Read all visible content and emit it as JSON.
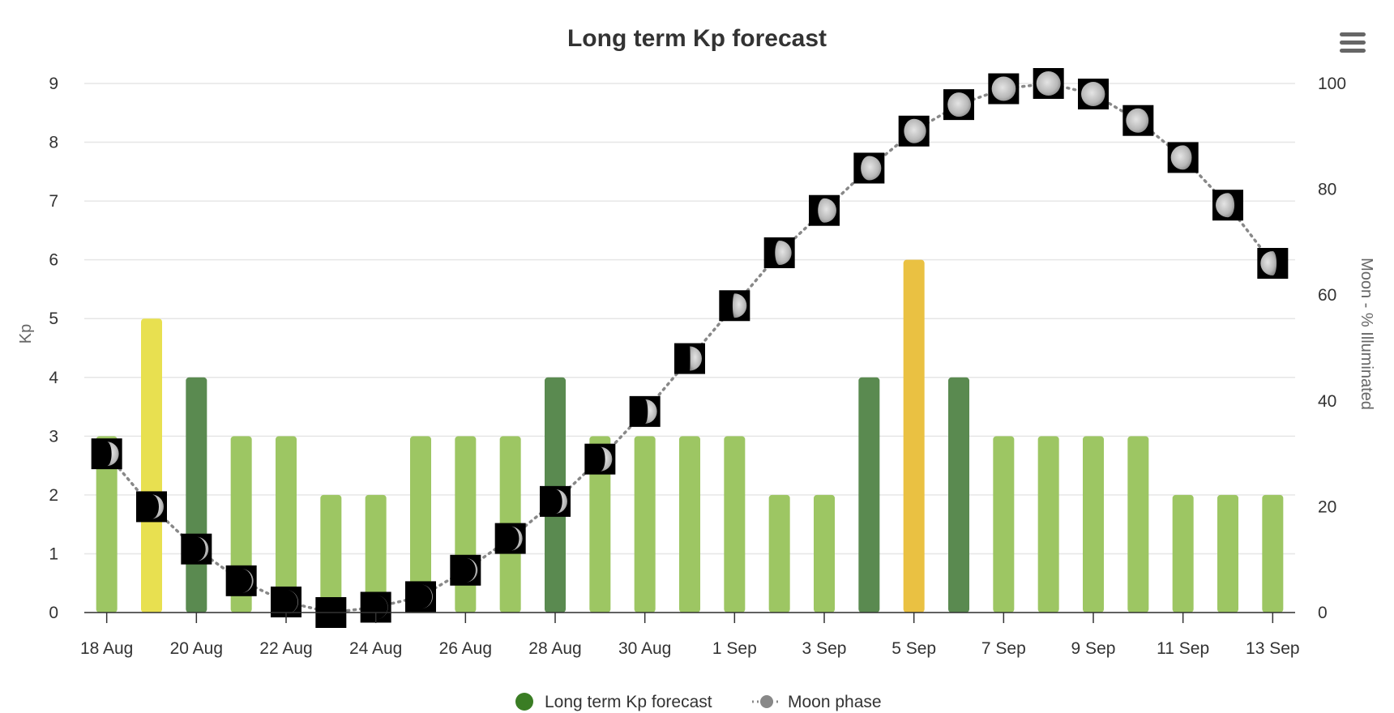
{
  "chart_data": {
    "type": "bar",
    "title": "Long term Kp forecast",
    "xlabel": "",
    "ylabel": "Kp",
    "y2label": "Moon - % Illuminated",
    "ylim": [
      0,
      9
    ],
    "y2lim": [
      0,
      100
    ],
    "yticks": [
      "0",
      "1",
      "2",
      "3",
      "4",
      "5",
      "6",
      "7",
      "8",
      "9"
    ],
    "y2ticks": [
      "0",
      "20",
      "40",
      "60",
      "80",
      "100"
    ],
    "categories": [
      "18 Aug",
      "19 Aug",
      "20 Aug",
      "21 Aug",
      "22 Aug",
      "23 Aug",
      "24 Aug",
      "25 Aug",
      "26 Aug",
      "27 Aug",
      "28 Aug",
      "29 Aug",
      "30 Aug",
      "31 Aug",
      "1 Sep",
      "2 Sep",
      "3 Sep",
      "4 Sep",
      "5 Sep",
      "6 Sep",
      "7 Sep",
      "8 Sep",
      "9 Sep",
      "10 Sep",
      "11 Sep",
      "12 Sep",
      "13 Sep"
    ],
    "xtick_labels": [
      "18 Aug",
      "20 Aug",
      "22 Aug",
      "24 Aug",
      "26 Aug",
      "28 Aug",
      "30 Aug",
      "1 Sep",
      "3 Sep",
      "5 Sep",
      "7 Sep",
      "9 Sep",
      "11 Sep",
      "13 Sep"
    ],
    "grid": true,
    "legend_position": "bottom-center",
    "series": [
      {
        "name": "Long term Kp forecast",
        "type": "bar",
        "axis": "left",
        "values": [
          3,
          5,
          4,
          3,
          3,
          2,
          2,
          3,
          3,
          3,
          4,
          3,
          3,
          3,
          3,
          2,
          2,
          4,
          6,
          4,
          3,
          3,
          3,
          3,
          2,
          2,
          2
        ],
        "legend_color": "#3a7d24"
      },
      {
        "name": "Moon phase",
        "type": "line",
        "axis": "right",
        "style": "dotted",
        "values": [
          30,
          20,
          12,
          6,
          2,
          0,
          1,
          3,
          8,
          14,
          21,
          29,
          38,
          48,
          58,
          68,
          76,
          84,
          91,
          96,
          99,
          100,
          98,
          93,
          86,
          77,
          66
        ],
        "legend_color": "#888888"
      }
    ],
    "kp_colors": {
      "2": "#9dc663",
      "3": "#9dc663",
      "4": "#5a8a50",
      "5": "#e8e050",
      "6": "#eac142"
    }
  }
}
